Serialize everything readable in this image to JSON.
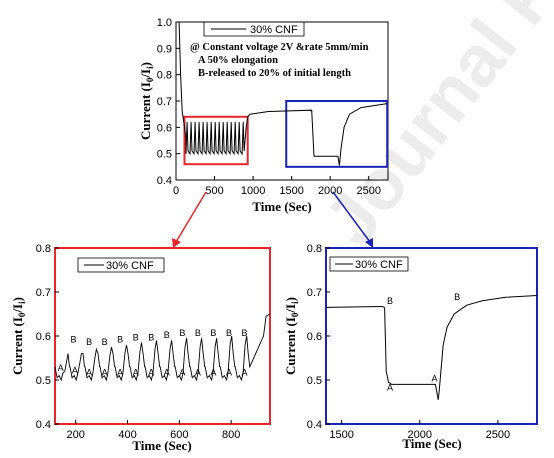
{
  "chart_data": [
    {
      "type": "line",
      "legend": [
        "30% CNF"
      ],
      "annotations": [
        "@ Constant voltage 2V &rate 5mm/min",
        "A 50% elongation",
        "B-released to 20% of initial length"
      ],
      "xlabel": "Time (Sec)",
      "ylabel": "Current (I0/Ii)",
      "xlim": [
        0,
        2750
      ],
      "ylim": [
        0.4,
        1.0
      ],
      "xticks": [
        0,
        500,
        1000,
        1500,
        2000,
        2500
      ],
      "yticks": [
        "0.4",
        "0.5",
        "0.6",
        "0.7",
        "0.8",
        "0.9",
        "1.0"
      ],
      "highlight_boxes": [
        {
          "color": "#e8262b",
          "x_range": [
            110,
            930
          ],
          "y_range": [
            0.46,
            0.64
          ]
        },
        {
          "color": "#1b22b8",
          "x_range": [
            1430,
            2740
          ],
          "y_range": [
            0.45,
            0.7
          ]
        }
      ],
      "series": [
        {
          "name": "30% CNF",
          "color": "#000000",
          "points": [
            [
              0,
              1.0
            ],
            [
              40,
              1.0
            ],
            [
              60,
              0.8
            ],
            [
              80,
              0.66
            ],
            [
              110,
              0.6
            ],
            [
              130,
              0.56
            ],
            [
              910,
              0.6
            ],
            [
              930,
              0.64
            ],
            [
              960,
              0.65
            ],
            [
              1200,
              0.66
            ],
            [
              1760,
              0.665
            ],
            [
              1790,
              0.49
            ],
            [
              2100,
              0.49
            ],
            [
              2120,
              0.455
            ],
            [
              2140,
              0.52
            ],
            [
              2180,
              0.6
            ],
            [
              2250,
              0.65
            ],
            [
              2400,
              0.675
            ],
            [
              2740,
              0.69
            ]
          ]
        }
      ]
    },
    {
      "type": "line",
      "legend": [
        "30% CNF"
      ],
      "xlabel": "Time (Sec)",
      "ylabel": "Current (I0/Ii)",
      "xlim": [
        120,
        950
      ],
      "ylim": [
        0.4,
        0.8
      ],
      "xticks": [
        200,
        400,
        600,
        800
      ],
      "yticks": [
        "0.4",
        "0.5",
        "0.6",
        "0.7",
        "0.8"
      ],
      "frame_color": "#e8262b",
      "series": [
        {
          "name": "30% CNF",
          "color": "#000000",
          "cycle": {
            "start": 120,
            "period": 58,
            "cycles": 13,
            "min": 0.5,
            "peaks": [
              0.54,
              0.56,
              0.57,
              0.575,
              0.58,
              0.585,
              0.59,
              0.59,
              0.595,
              0.595,
              0.595,
              0.6,
              0.6
            ]
          },
          "tail": [
            [
              925,
              0.6
            ],
            [
              935,
              0.645
            ],
            [
              950,
              0.65
            ]
          ]
        }
      ],
      "point_labels": {
        "B": [
          [
            180,
            0.585
          ],
          [
            240,
            0.58
          ],
          [
            300,
            0.58
          ],
          [
            360,
            0.585
          ],
          [
            420,
            0.59
          ],
          [
            480,
            0.59
          ],
          [
            540,
            0.595
          ],
          [
            600,
            0.6
          ],
          [
            660,
            0.6
          ],
          [
            720,
            0.6
          ],
          [
            780,
            0.6
          ],
          [
            840,
            0.6
          ]
        ],
        "A": [
          [
            130,
            0.52
          ],
          [
            185,
            0.515
          ],
          [
            240,
            0.51
          ],
          [
            300,
            0.51
          ],
          [
            360,
            0.51
          ],
          [
            420,
            0.51
          ],
          [
            480,
            0.51
          ],
          [
            540,
            0.51
          ],
          [
            600,
            0.51
          ],
          [
            660,
            0.51
          ],
          [
            720,
            0.51
          ],
          [
            780,
            0.51
          ],
          [
            840,
            0.51
          ]
        ]
      }
    },
    {
      "type": "line",
      "legend": [
        "30% CNF"
      ],
      "xlabel": "Time (Sec)",
      "ylabel": "Current (I0/Ii)",
      "xlim": [
        1400,
        2750
      ],
      "ylim": [
        0.4,
        0.8
      ],
      "xticks": [
        1500,
        2000,
        2500
      ],
      "yticks": [
        "0.4",
        "0.5",
        "0.6",
        "0.7",
        "0.8"
      ],
      "frame_color": "#1b22b8",
      "series": [
        {
          "name": "30% CNF",
          "color": "#000000",
          "points": [
            [
              1400,
              0.665
            ],
            [
              1760,
              0.667
            ],
            [
              1775,
              0.665
            ],
            [
              1785,
              0.52
            ],
            [
              1800,
              0.495
            ],
            [
              1820,
              0.49
            ],
            [
              2080,
              0.49
            ],
            [
              2100,
              0.49
            ],
            [
              2110,
              0.47
            ],
            [
              2118,
              0.455
            ],
            [
              2124,
              0.475
            ],
            [
              2135,
              0.52
            ],
            [
              2150,
              0.58
            ],
            [
              2175,
              0.62
            ],
            [
              2220,
              0.65
            ],
            [
              2300,
              0.67
            ],
            [
              2400,
              0.68
            ],
            [
              2550,
              0.688
            ],
            [
              2750,
              0.692
            ]
          ]
        }
      ],
      "point_labels": {
        "B": [
          [
            1790,
            0.673
          ],
          [
            2220,
            0.682
          ]
        ],
        "A": [
          [
            1790,
            0.476
          ],
          [
            2075,
            0.497
          ]
        ]
      }
    }
  ]
}
